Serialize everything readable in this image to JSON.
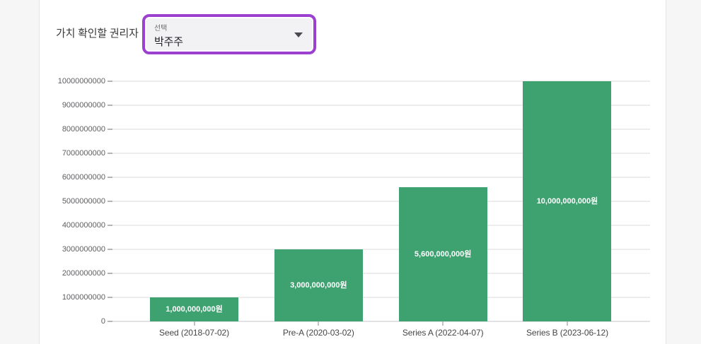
{
  "page": {
    "selector_label": "가치 확인할 권리자",
    "select": {
      "floating_label": "선택",
      "value": "박주주"
    }
  },
  "colors": {
    "accent_purple": "#9c40cf",
    "bar_green": "#3ea170",
    "select_fill": "#f2f1f3",
    "page_background": "#f6f6f7",
    "card_background": "#ffffff"
  },
  "chart_data": {
    "type": "bar",
    "title": "",
    "xlabel": "",
    "ylabel": "",
    "categories": [
      "Seed (2018-07-02)",
      "Pre-A (2020-03-02)",
      "Series A (2022-04-07)",
      "Series B (2023-06-12)"
    ],
    "values": [
      1000000000,
      3000000000,
      5600000000,
      10000000000
    ],
    "bar_labels": [
      "1,000,000,000원",
      "3,000,000,000원",
      "5,600,000,000원",
      "10,000,000,000원"
    ],
    "y_ticks": [
      0,
      1000000000,
      2000000000,
      3000000000,
      4000000000,
      5000000000,
      6000000000,
      7000000000,
      8000000000,
      9000000000,
      10000000000
    ],
    "y_tick_labels": [
      "0",
      "1000000000",
      "2000000000",
      "3000000000",
      "4000000000",
      "5000000000",
      "6000000000",
      "7000000000",
      "8000000000",
      "9000000000",
      "10000000000"
    ],
    "ylim": [
      0,
      10000000000
    ],
    "grid": true,
    "legend": false,
    "bar_color": "#3ea170"
  }
}
